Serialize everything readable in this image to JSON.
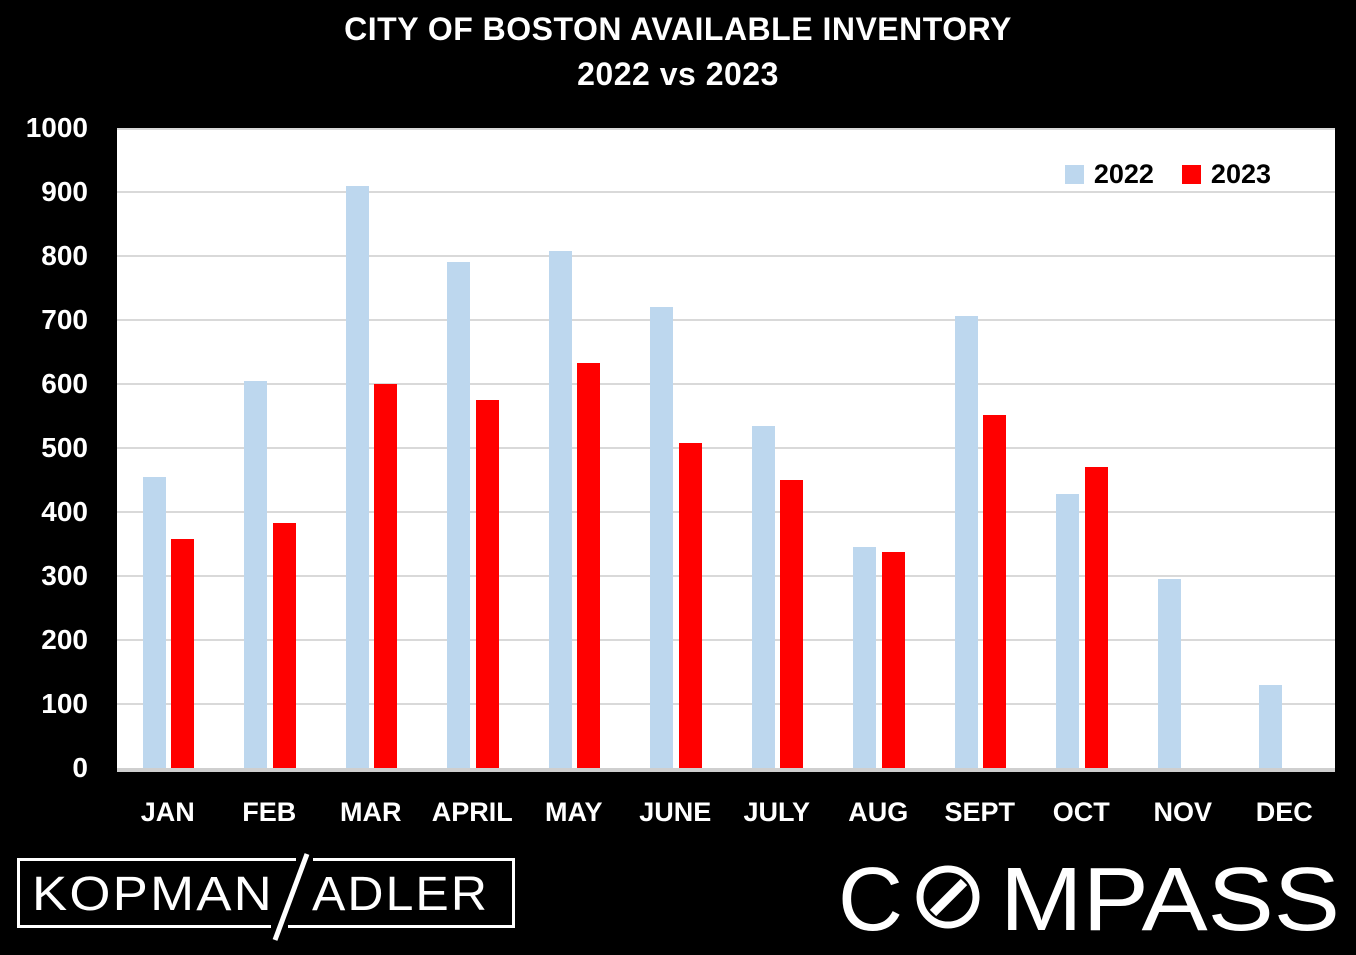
{
  "title": {
    "line1": "CITY OF BOSTON AVAILABLE INVENTORY",
    "line2": "2022 vs 2023"
  },
  "chart_data": {
    "type": "bar",
    "title": "CITY OF BOSTON AVAILABLE INVENTORY 2022 vs 2023",
    "categories": [
      "JAN",
      "FEB",
      "MAR",
      "APRIL",
      "MAY",
      "JUNE",
      "JULY",
      "AUG",
      "SEPT",
      "OCT",
      "NOV",
      "DEC"
    ],
    "series": [
      {
        "name": "2022",
        "color": "#BDD7EE",
        "values": [
          455,
          605,
          910,
          790,
          808,
          720,
          535,
          345,
          707,
          428,
          295,
          130
        ]
      },
      {
        "name": "2023",
        "color": "#FF0000",
        "values": [
          358,
          383,
          600,
          575,
          633,
          508,
          450,
          338,
          552,
          470,
          0,
          0
        ]
      }
    ],
    "ylim": [
      0,
      1000
    ],
    "yticks": [
      0,
      100,
      200,
      300,
      400,
      500,
      600,
      700,
      800,
      900,
      1000
    ],
    "grid": "horizontal",
    "legend_position": "top-right",
    "plot_background": "#FFFFFF",
    "page_background": "#000000",
    "gridline_color": "#D9D9D9"
  },
  "footer": {
    "kopman_logo": {
      "left": "KOPMAN",
      "slash": "/",
      "right": "ADLER"
    },
    "compass_logo": {
      "prefix": "C",
      "suffix": "MPASS"
    }
  }
}
